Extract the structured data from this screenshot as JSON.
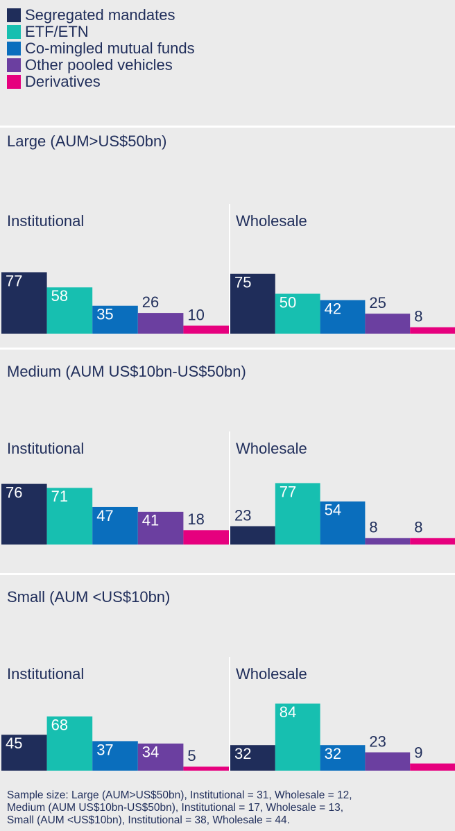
{
  "categories": [
    "Segregated mandates",
    "ETF/ETN",
    "Co-mingled mutual funds",
    "Other pooled vehicles",
    "Derivatives"
  ],
  "colors": [
    "#1f2d5a",
    "#17bfb0",
    "#0a6ebd",
    "#6b3fa0",
    "#e6007e"
  ],
  "ylim": [
    0,
    100
  ],
  "sections": [
    {
      "title": "Large (AUM>US$50bn)",
      "charts": [
        {
          "type": "bar",
          "title": "Institutional",
          "values": [
            77,
            58,
            35,
            26,
            10
          ]
        },
        {
          "type": "bar",
          "title": "Wholesale",
          "values": [
            75,
            50,
            42,
            25,
            8
          ]
        }
      ]
    },
    {
      "title": "Medium (AUM US$10bn-US$50bn)",
      "charts": [
        {
          "type": "bar",
          "title": "Institutional",
          "values": [
            76,
            71,
            47,
            41,
            18
          ]
        },
        {
          "type": "bar",
          "title": "Wholesale",
          "values": [
            23,
            77,
            54,
            8,
            8
          ]
        }
      ]
    },
    {
      "title": "Small (AUM <US$10bn)",
      "charts": [
        {
          "type": "bar",
          "title": "Institutional",
          "values": [
            45,
            68,
            37,
            34,
            5
          ]
        },
        {
          "type": "bar",
          "title": "Wholesale",
          "values": [
            32,
            84,
            32,
            23,
            9
          ]
        }
      ]
    }
  ],
  "footnote": [
    "Sample size: Large (AUM>US$50bn), Institutional = 31, Wholesale = 12,",
    "Medium (AUM US$10bn-US$50bn), Institutional = 17, Wholesale = 13,",
    "Small (AUM <US$10bn), Institutional = 38, Wholesale = 44."
  ]
}
